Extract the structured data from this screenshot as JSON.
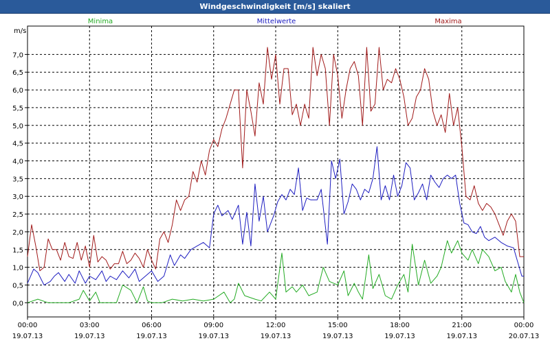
{
  "title": "Windgeschwindigkeit [m/s] skaliert",
  "chart_data": {
    "type": "line",
    "title": "Windgeschwindigkeit [m/s] skaliert",
    "ylabel": "m/s",
    "ylim": [
      -0.4,
      7.8
    ],
    "yticks": [
      "0,0",
      "0,5",
      "1,0",
      "1,5",
      "2,0",
      "2,5",
      "3,0",
      "3,5",
      "4,0",
      "4,5",
      "5,0",
      "5,5",
      "6,0",
      "6,5",
      "7,0"
    ],
    "yticks_values": [
      0,
      0.5,
      1,
      1.5,
      2,
      2.5,
      3,
      3.5,
      4,
      4.5,
      5,
      5.5,
      6,
      6.5,
      7
    ],
    "x_ticks": [
      {
        "time": "00:00",
        "date": "19.07.13"
      },
      {
        "time": "03:00",
        "date": "19.07.13"
      },
      {
        "time": "06:00",
        "date": "19.07.13"
      },
      {
        "time": "09:00",
        "date": "19.07.13"
      },
      {
        "time": "12:00",
        "date": "19.07.13"
      },
      {
        "time": "15:00",
        "date": "19.07.13"
      },
      {
        "time": "18:00",
        "date": "19.07.13"
      },
      {
        "time": "21:00",
        "date": "19.07.13"
      },
      {
        "time": "00:00",
        "date": "20.07.13"
      }
    ],
    "xlim_hours": [
      0,
      24
    ],
    "grid": true,
    "series": [
      {
        "name": "Minima",
        "color": "#22aa22",
        "points": [
          [
            0,
            0.0
          ],
          [
            0.5,
            0.1
          ],
          [
            1,
            0.0
          ],
          [
            1.5,
            0.0
          ],
          [
            2,
            0.0
          ],
          [
            2.5,
            0.1
          ],
          [
            2.7,
            0.35
          ],
          [
            3,
            0.05
          ],
          [
            3.3,
            0.3
          ],
          [
            3.5,
            0.0
          ],
          [
            4,
            0.0
          ],
          [
            4.3,
            0.0
          ],
          [
            4.6,
            0.5
          ],
          [
            5,
            0.35
          ],
          [
            5.3,
            0.0
          ],
          [
            5.6,
            0.45
          ],
          [
            5.8,
            0.05
          ],
          [
            6,
            0.0
          ],
          [
            6.5,
            0.0
          ],
          [
            7,
            0.1
          ],
          [
            7.5,
            0.05
          ],
          [
            8,
            0.1
          ],
          [
            8.5,
            0.05
          ],
          [
            9,
            0.1
          ],
          [
            9.5,
            0.3
          ],
          [
            9.8,
            0.0
          ],
          [
            10,
            0.1
          ],
          [
            10.2,
            0.55
          ],
          [
            10.5,
            0.2
          ],
          [
            11,
            0.1
          ],
          [
            11.3,
            0.05
          ],
          [
            11.7,
            0.3
          ],
          [
            12,
            0.1
          ],
          [
            12.3,
            1.4
          ],
          [
            12.5,
            0.3
          ],
          [
            12.8,
            0.45
          ],
          [
            13,
            0.3
          ],
          [
            13.3,
            0.5
          ],
          [
            13.6,
            0.2
          ],
          [
            14,
            0.3
          ],
          [
            14.3,
            1.0
          ],
          [
            14.6,
            0.6
          ],
          [
            15,
            0.5
          ],
          [
            15.3,
            0.9
          ],
          [
            15.5,
            0.2
          ],
          [
            15.8,
            0.55
          ],
          [
            16,
            0.3
          ],
          [
            16.2,
            0.1
          ],
          [
            16.5,
            1.35
          ],
          [
            16.7,
            0.4
          ],
          [
            17,
            0.8
          ],
          [
            17.3,
            0.2
          ],
          [
            17.6,
            0.1
          ],
          [
            17.9,
            0.5
          ],
          [
            18.2,
            0.8
          ],
          [
            18.4,
            0.3
          ],
          [
            18.6,
            1.65
          ],
          [
            18.9,
            0.5
          ],
          [
            19.2,
            1.2
          ],
          [
            19.5,
            0.55
          ],
          [
            19.8,
            0.75
          ],
          [
            20,
            1.0
          ],
          [
            20.3,
            1.75
          ],
          [
            20.5,
            1.4
          ],
          [
            20.8,
            1.75
          ],
          [
            21,
            1.4
          ],
          [
            21.3,
            1.2
          ],
          [
            21.5,
            1.5
          ],
          [
            21.8,
            1.1
          ],
          [
            22,
            1.5
          ],
          [
            22.3,
            1.3
          ],
          [
            22.6,
            0.9
          ],
          [
            22.9,
            1.0
          ],
          [
            23.1,
            0.6
          ],
          [
            23.4,
            0.3
          ],
          [
            23.6,
            0.8
          ],
          [
            23.8,
            0.3
          ],
          [
            24,
            0.0
          ]
        ]
      },
      {
        "name": "Mittelwerte",
        "color": "#1c1cc0",
        "points": [
          [
            0,
            0.55
          ],
          [
            0.3,
            0.95
          ],
          [
            0.5,
            0.85
          ],
          [
            0.8,
            0.5
          ],
          [
            1.1,
            0.6
          ],
          [
            1.3,
            0.75
          ],
          [
            1.5,
            0.85
          ],
          [
            1.8,
            0.6
          ],
          [
            2,
            0.8
          ],
          [
            2.3,
            0.55
          ],
          [
            2.5,
            0.9
          ],
          [
            2.8,
            0.55
          ],
          [
            3,
            0.75
          ],
          [
            3.3,
            0.65
          ],
          [
            3.6,
            0.9
          ],
          [
            3.8,
            0.6
          ],
          [
            4,
            0.75
          ],
          [
            4.3,
            0.65
          ],
          [
            4.6,
            0.9
          ],
          [
            4.9,
            0.7
          ],
          [
            5.2,
            0.95
          ],
          [
            5.4,
            0.6
          ],
          [
            5.6,
            0.7
          ],
          [
            6,
            0.9
          ],
          [
            6.3,
            0.6
          ],
          [
            6.6,
            0.75
          ],
          [
            6.9,
            1.35
          ],
          [
            7.1,
            1.05
          ],
          [
            7.4,
            1.35
          ],
          [
            7.6,
            1.25
          ],
          [
            7.9,
            1.5
          ],
          [
            8.2,
            1.6
          ],
          [
            8.5,
            1.7
          ],
          [
            8.8,
            1.55
          ],
          [
            9,
            2.5
          ],
          [
            9.2,
            2.75
          ],
          [
            9.4,
            2.45
          ],
          [
            9.7,
            2.6
          ],
          [
            9.9,
            2.35
          ],
          [
            10.2,
            2.75
          ],
          [
            10.4,
            1.65
          ],
          [
            10.6,
            2.55
          ],
          [
            10.8,
            1.6
          ],
          [
            11,
            3.35
          ],
          [
            11.2,
            2.3
          ],
          [
            11.4,
            3.0
          ],
          [
            11.6,
            2.0
          ],
          [
            11.9,
            2.45
          ],
          [
            12.1,
            2.85
          ],
          [
            12.3,
            3.05
          ],
          [
            12.5,
            2.9
          ],
          [
            12.7,
            3.2
          ],
          [
            12.9,
            3.05
          ],
          [
            13.1,
            3.8
          ],
          [
            13.3,
            2.6
          ],
          [
            13.5,
            2.95
          ],
          [
            13.7,
            2.9
          ],
          [
            14,
            2.9
          ],
          [
            14.2,
            3.2
          ],
          [
            14.5,
            1.65
          ],
          [
            14.7,
            4.0
          ],
          [
            14.9,
            3.5
          ],
          [
            15.1,
            4.05
          ],
          [
            15.3,
            2.5
          ],
          [
            15.5,
            2.85
          ],
          [
            15.7,
            3.35
          ],
          [
            15.9,
            3.2
          ],
          [
            16.1,
            2.9
          ],
          [
            16.3,
            3.2
          ],
          [
            16.5,
            3.1
          ],
          [
            16.7,
            3.5
          ],
          [
            16.9,
            4.4
          ],
          [
            17.1,
            2.9
          ],
          [
            17.3,
            3.3
          ],
          [
            17.5,
            2.9
          ],
          [
            17.7,
            3.6
          ],
          [
            17.9,
            3.0
          ],
          [
            18.1,
            3.3
          ],
          [
            18.3,
            3.95
          ],
          [
            18.5,
            3.8
          ],
          [
            18.7,
            2.9
          ],
          [
            18.9,
            3.1
          ],
          [
            19.1,
            3.35
          ],
          [
            19.3,
            2.9
          ],
          [
            19.5,
            3.6
          ],
          [
            19.7,
            3.4
          ],
          [
            19.9,
            3.25
          ],
          [
            20.1,
            3.5
          ],
          [
            20.3,
            3.6
          ],
          [
            20.5,
            3.5
          ],
          [
            20.7,
            3.6
          ],
          [
            20.9,
            2.8
          ],
          [
            21.1,
            2.25
          ],
          [
            21.3,
            2.2
          ],
          [
            21.5,
            2.0
          ],
          [
            21.7,
            1.95
          ],
          [
            21.9,
            2.15
          ],
          [
            22.1,
            1.85
          ],
          [
            22.3,
            1.75
          ],
          [
            22.6,
            1.85
          ],
          [
            22.9,
            1.7
          ],
          [
            23.2,
            1.6
          ],
          [
            23.5,
            1.55
          ],
          [
            23.7,
            1.15
          ],
          [
            23.9,
            0.75
          ],
          [
            24,
            0.75
          ]
        ]
      },
      {
        "name": "Maxima",
        "color": "#a01818",
        "points": [
          [
            0,
            1.3
          ],
          [
            0.2,
            2.2
          ],
          [
            0.4,
            1.6
          ],
          [
            0.6,
            0.9
          ],
          [
            0.8,
            1.0
          ],
          [
            1.0,
            1.8
          ],
          [
            1.2,
            1.5
          ],
          [
            1.4,
            1.5
          ],
          [
            1.6,
            1.2
          ],
          [
            1.8,
            1.7
          ],
          [
            2.0,
            1.3
          ],
          [
            2.2,
            1.25
          ],
          [
            2.4,
            1.7
          ],
          [
            2.6,
            1.2
          ],
          [
            2.8,
            1.6
          ],
          [
            3.0,
            1.0
          ],
          [
            3.2,
            1.9
          ],
          [
            3.4,
            1.15
          ],
          [
            3.6,
            1.3
          ],
          [
            3.8,
            1.2
          ],
          [
            4.0,
            0.95
          ],
          [
            4.2,
            1.1
          ],
          [
            4.4,
            1.1
          ],
          [
            4.6,
            1.45
          ],
          [
            4.8,
            1.1
          ],
          [
            5.0,
            1.2
          ],
          [
            5.2,
            1.4
          ],
          [
            5.4,
            1.25
          ],
          [
            5.6,
            1.0
          ],
          [
            5.8,
            1.5
          ],
          [
            6.0,
            1.2
          ],
          [
            6.2,
            0.95
          ],
          [
            6.4,
            1.8
          ],
          [
            6.6,
            2.0
          ],
          [
            6.8,
            1.7
          ],
          [
            7.0,
            2.2
          ],
          [
            7.2,
            2.9
          ],
          [
            7.4,
            2.6
          ],
          [
            7.6,
            2.9
          ],
          [
            7.8,
            3.0
          ],
          [
            8.0,
            3.7
          ],
          [
            8.2,
            3.4
          ],
          [
            8.4,
            4.0
          ],
          [
            8.6,
            3.6
          ],
          [
            8.8,
            4.3
          ],
          [
            9.0,
            4.6
          ],
          [
            9.2,
            4.4
          ],
          [
            9.4,
            4.9
          ],
          [
            9.6,
            5.2
          ],
          [
            9.8,
            5.6
          ],
          [
            10.0,
            6.0
          ],
          [
            10.2,
            6.0
          ],
          [
            10.4,
            3.8
          ],
          [
            10.6,
            6.0
          ],
          [
            10.8,
            5.4
          ],
          [
            11.0,
            4.7
          ],
          [
            11.2,
            6.2
          ],
          [
            11.4,
            5.6
          ],
          [
            11.6,
            7.2
          ],
          [
            11.8,
            6.3
          ],
          [
            12.0,
            7.0
          ],
          [
            12.2,
            5.6
          ],
          [
            12.4,
            6.6
          ],
          [
            12.6,
            6.6
          ],
          [
            12.8,
            5.3
          ],
          [
            13.0,
            5.6
          ],
          [
            13.2,
            5.0
          ],
          [
            13.4,
            5.6
          ],
          [
            13.6,
            5.2
          ],
          [
            13.8,
            7.2
          ],
          [
            14.0,
            6.4
          ],
          [
            14.2,
            7.0
          ],
          [
            14.4,
            6.6
          ],
          [
            14.6,
            5.0
          ],
          [
            14.8,
            7.0
          ],
          [
            15.0,
            6.4
          ],
          [
            15.2,
            5.2
          ],
          [
            15.4,
            6.0
          ],
          [
            15.6,
            6.6
          ],
          [
            15.8,
            6.8
          ],
          [
            16.0,
            6.4
          ],
          [
            16.2,
            5.0
          ],
          [
            16.4,
            7.2
          ],
          [
            16.6,
            5.4
          ],
          [
            16.8,
            5.6
          ],
          [
            17.0,
            7.2
          ],
          [
            17.2,
            6.0
          ],
          [
            17.4,
            6.3
          ],
          [
            17.6,
            6.2
          ],
          [
            17.8,
            6.6
          ],
          [
            18.0,
            6.3
          ],
          [
            18.2,
            5.8
          ],
          [
            18.4,
            5.0
          ],
          [
            18.6,
            5.2
          ],
          [
            18.8,
            5.8
          ],
          [
            19.0,
            6.0
          ],
          [
            19.2,
            6.6
          ],
          [
            19.4,
            6.3
          ],
          [
            19.6,
            5.4
          ],
          [
            19.8,
            5.0
          ],
          [
            20.0,
            5.3
          ],
          [
            20.2,
            4.8
          ],
          [
            20.4,
            5.9
          ],
          [
            20.6,
            5.0
          ],
          [
            20.8,
            5.5
          ],
          [
            21.0,
            4.4
          ],
          [
            21.2,
            3.0
          ],
          [
            21.4,
            2.9
          ],
          [
            21.6,
            3.3
          ],
          [
            21.8,
            2.8
          ],
          [
            22.0,
            2.6
          ],
          [
            22.2,
            2.8
          ],
          [
            22.4,
            2.7
          ],
          [
            22.6,
            2.5
          ],
          [
            22.8,
            2.2
          ],
          [
            23.0,
            1.9
          ],
          [
            23.2,
            2.3
          ],
          [
            23.4,
            2.5
          ],
          [
            23.6,
            2.3
          ],
          [
            23.8,
            1.3
          ],
          [
            24.0,
            1.3
          ]
        ]
      }
    ]
  }
}
